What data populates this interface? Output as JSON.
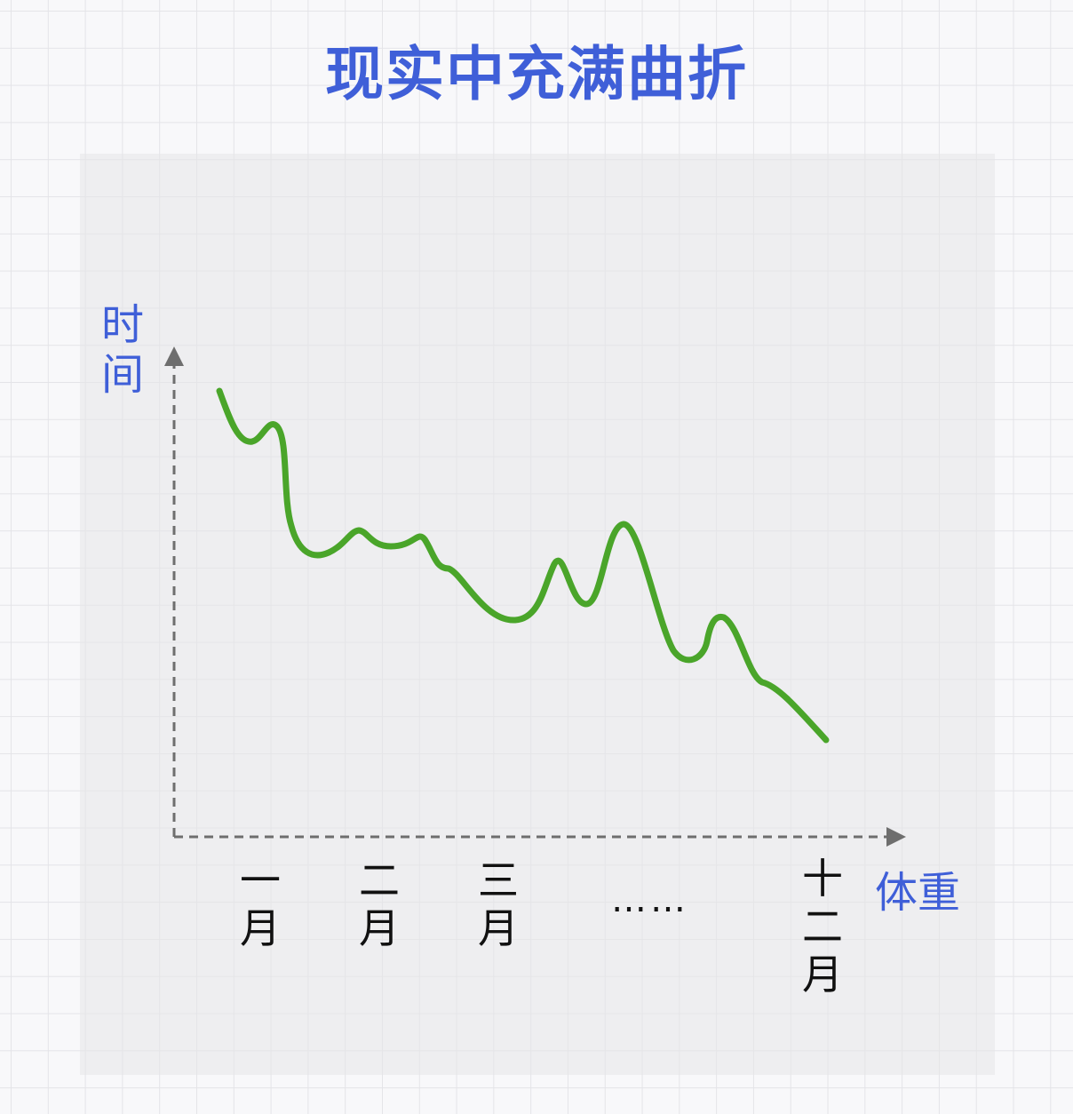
{
  "title": "现实中充满曲折",
  "y_axis_label": "时间",
  "x_axis_label": "体重",
  "x_ticks": [
    "一月",
    "二月",
    "三月",
    "……",
    "十二月"
  ],
  "colors": {
    "title": "#3f5fd8",
    "curve": "#4aa52a",
    "axis": "#6e6e6e",
    "text": "#111111"
  }
}
